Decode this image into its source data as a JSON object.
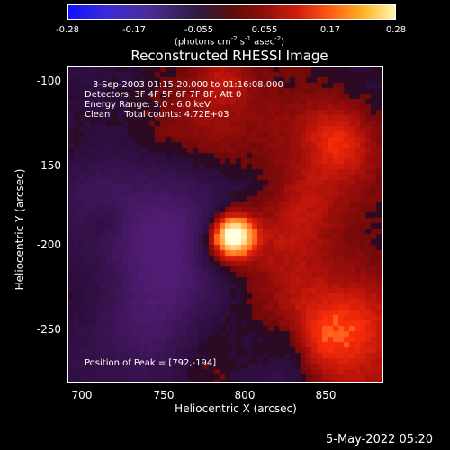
{
  "colorbar": {
    "ticks": [
      "-0.28",
      "-0.17",
      "-0.055",
      "0.055",
      "0.17",
      "0.28"
    ],
    "units_main": "(photons cm",
    "units_sup1": "-2",
    "units_mid": " s",
    "units_sup2": "-1",
    "units_mid2": " asec",
    "units_sup3": "-2",
    "units_close": ")"
  },
  "title": "Reconstructed RHESSI Image",
  "annotations": {
    "line1": "3-Sep-2003 01:15:20.000 to 01:16:08.000",
    "line2": "Detectors: 3F 4F 5F 6F 7F 8F, Att 0",
    "line3": "Energy Range: 3.0 - 6.0 keV",
    "line4": "Clean     Total counts: 4.72E+03",
    "peak": "Position of Peak = [792,-194]"
  },
  "axes": {
    "xlabel": "Heliocentric X (arcsec)",
    "ylabel": "Heliocentric Y (arcsec)",
    "xticks": [
      "700",
      "750",
      "800",
      "850"
    ],
    "yticks": [
      "-100",
      "-150",
      "-200",
      "-250"
    ]
  },
  "timestamp": "5-May-2022 05:20"
}
